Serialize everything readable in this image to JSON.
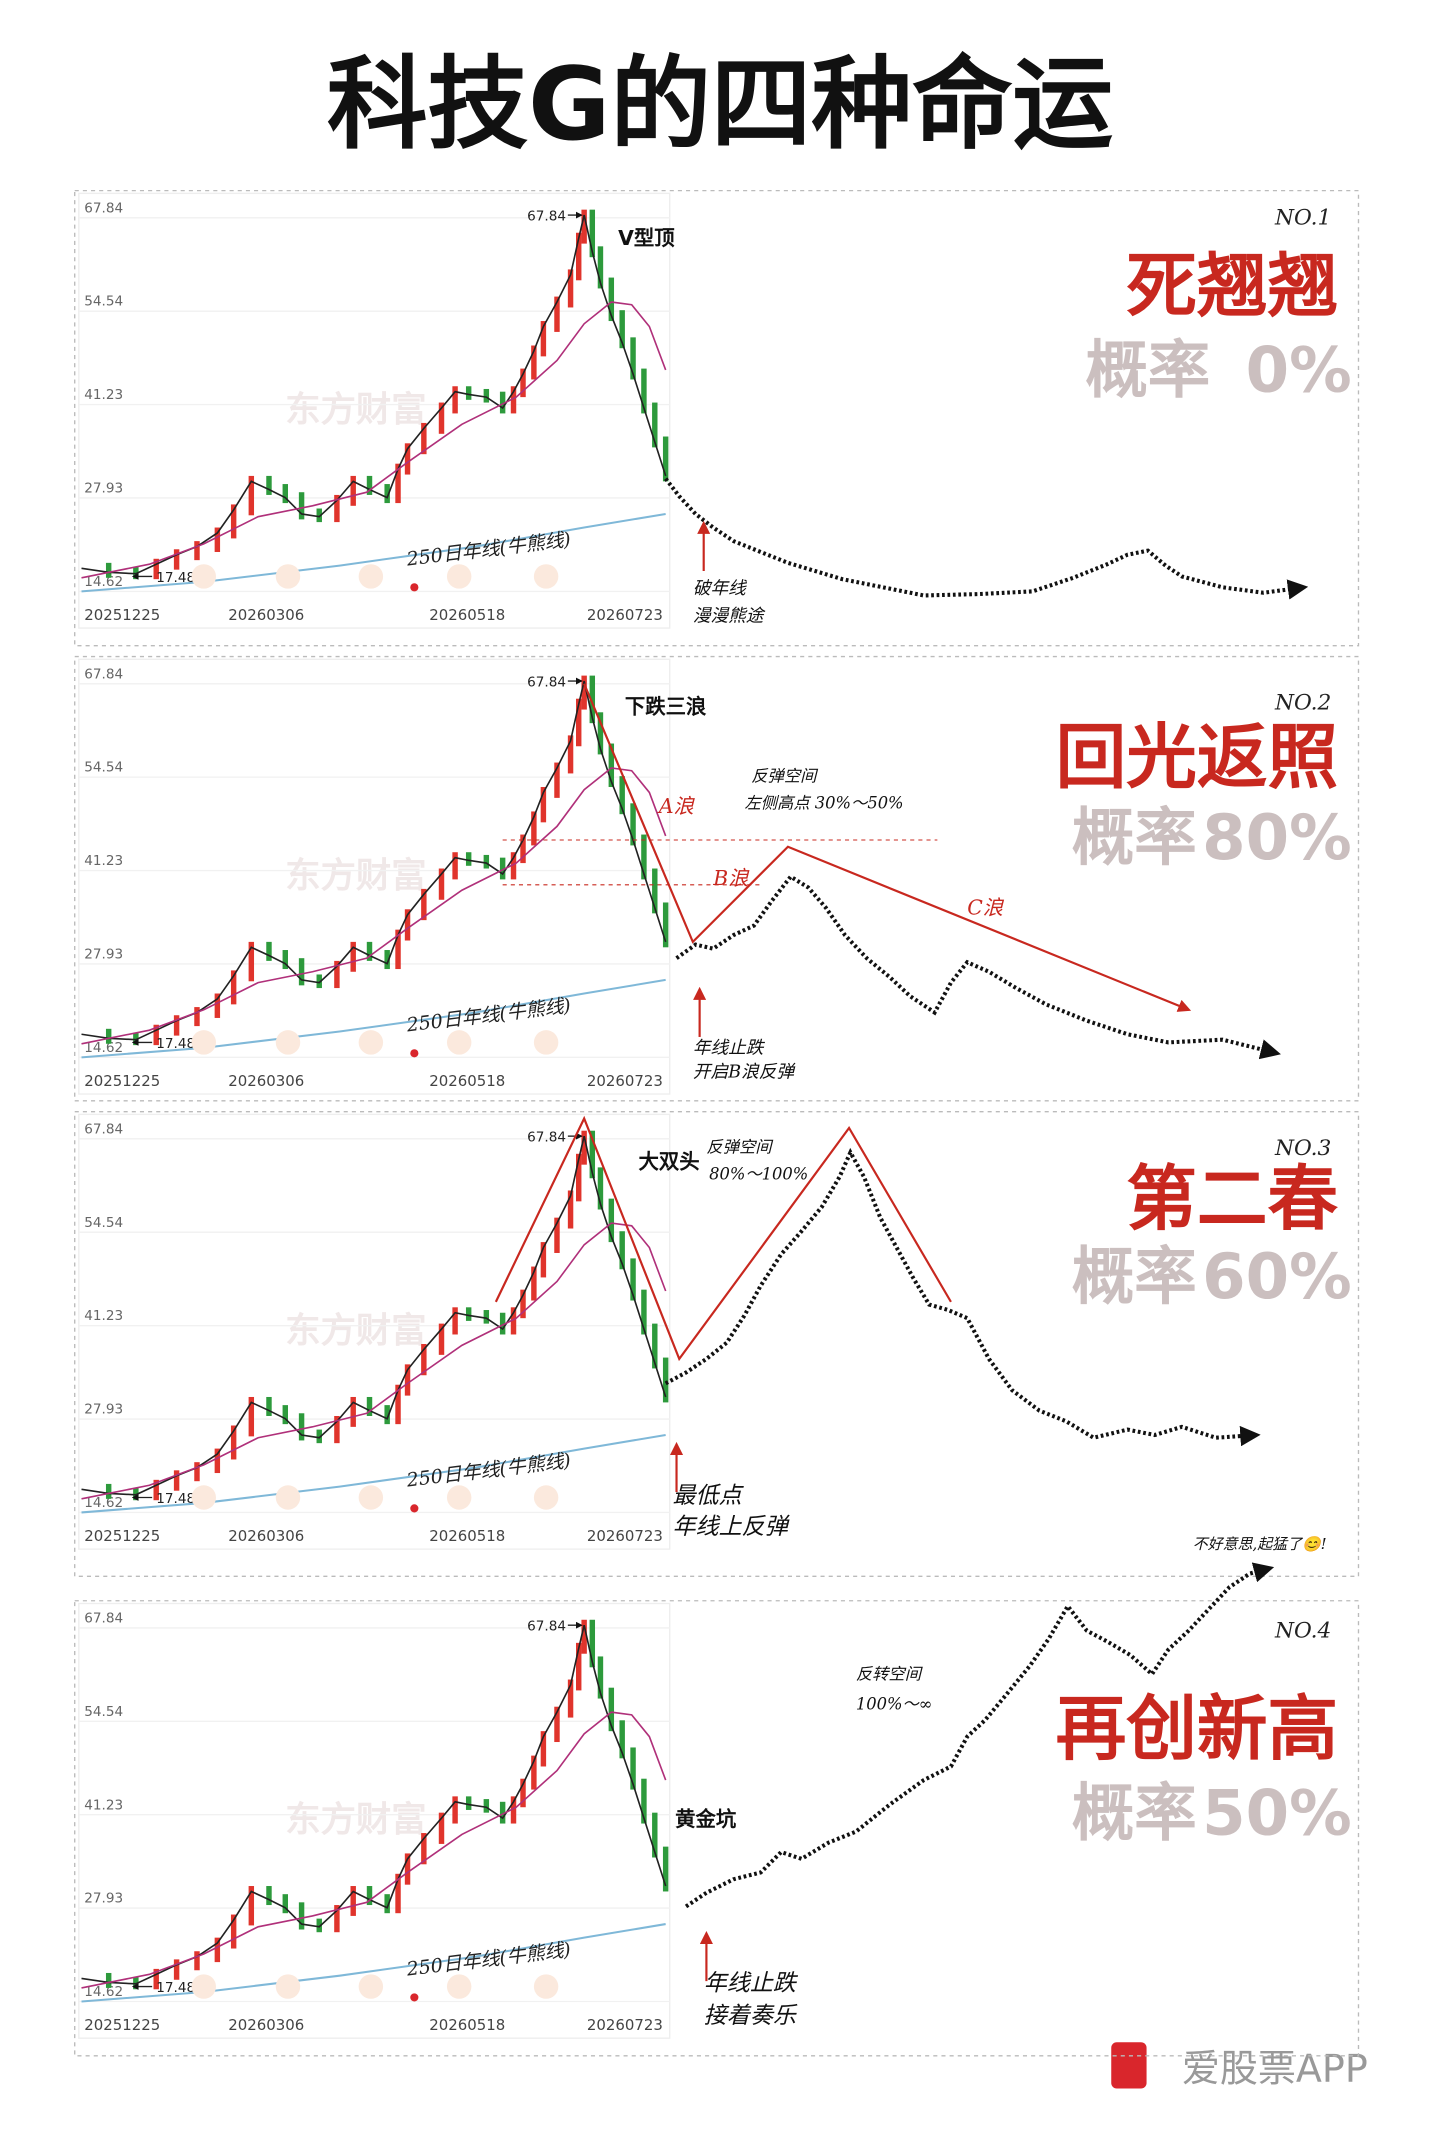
{
  "title": "科技G的四种命运",
  "axis": {
    "yticks": [
      67.84,
      54.54,
      41.23,
      27.93,
      14.62
    ],
    "xticks": [
      "20251225",
      "20260306",
      "20260518",
      "20260723"
    ],
    "peak": 67.84,
    "low": 17.48,
    "ma_label": "250日年线(牛熊线)",
    "watermark": "东方财富"
  },
  "panels": [
    {
      "number": "NO.1",
      "name": "死翘翘",
      "probability_label": "概率",
      "probability": "0%",
      "pattern": "V型顶",
      "notes": [
        "破年线",
        "漫漫熊途"
      ]
    },
    {
      "number": "NO.2",
      "name": "回光返照",
      "probability_label": "概率",
      "probability": "80%",
      "pattern": "下跌三浪",
      "waves": [
        "A浪",
        "B浪",
        "C浪"
      ],
      "space": [
        "反弹空间",
        "左侧高点 30%～50%"
      ],
      "notes": [
        "年线止跌",
        "开启B浪反弹"
      ]
    },
    {
      "number": "NO.3",
      "name": "第二春",
      "probability_label": "概率",
      "probability": "60%",
      "pattern": "大双头",
      "space": [
        "反弹空间",
        "80%～100%"
      ],
      "notes": [
        "最低点",
        "年线上反弹"
      ]
    },
    {
      "number": "NO.4",
      "name": "再创新高",
      "probability_label": "概率",
      "probability": "50%",
      "pattern": "黄金坑",
      "space": [
        "反转空间",
        "100%～∞"
      ],
      "remark": "不好意思,起猛了😊!",
      "notes": [
        "年线止跌",
        "接着奏乐"
      ]
    }
  ],
  "footer": "爱股票APP"
}
